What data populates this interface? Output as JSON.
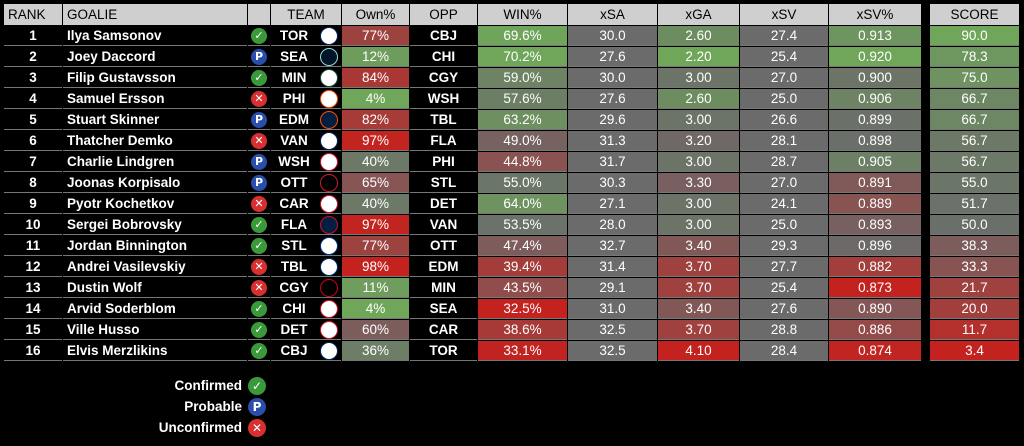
{
  "headers": {
    "rank": "RANK",
    "goalie": "GOALIE",
    "team": "TEAM",
    "own": "Own%",
    "opp": "OPP",
    "win": "WIN%",
    "xsa": "xSA",
    "xga": "xGA",
    "xsv": "xSV",
    "xsvp": "xSV%",
    "score": "SCORE"
  },
  "status_colors": {
    "confirmed": "#3a9a3a",
    "probable": "#2a4faa",
    "unconfirmed": "#d83030"
  },
  "status_glyphs": {
    "confirmed": "✓",
    "probable": "P",
    "unconfirmed": "✕"
  },
  "legend": [
    {
      "label": "Confirmed",
      "status": "confirmed"
    },
    {
      "label": "Probable",
      "status": "probable"
    },
    {
      "label": "Unconfirmed",
      "status": "unconfirmed"
    }
  ],
  "rows": [
    {
      "rank": "1",
      "goalie": "Ilya Samsonov",
      "status": "confirmed",
      "team": "TOR",
      "logo": "maple-leaf",
      "own": "77%",
      "opp": "CBJ",
      "win": "69.6%",
      "xsa": "30.0",
      "xga": "2.60",
      "xsv": "27.4",
      "xsvp": "0.913",
      "score": "90.0"
    },
    {
      "rank": "2",
      "goalie": "Joey Daccord",
      "status": "probable",
      "team": "SEA",
      "logo": "kraken",
      "own": "12%",
      "opp": "CHI",
      "win": "70.2%",
      "xsa": "27.6",
      "xga": "2.20",
      "xsv": "25.4",
      "xsvp": "0.920",
      "score": "78.3"
    },
    {
      "rank": "3",
      "goalie": "Filip Gustavsson",
      "status": "confirmed",
      "team": "MIN",
      "logo": "wild",
      "own": "84%",
      "opp": "CGY",
      "win": "59.0%",
      "xsa": "30.0",
      "xga": "3.00",
      "xsv": "27.0",
      "xsvp": "0.900",
      "score": "75.0"
    },
    {
      "rank": "4",
      "goalie": "Samuel Ersson",
      "status": "unconfirmed",
      "team": "PHI",
      "logo": "flyers",
      "own": "4%",
      "opp": "WSH",
      "win": "57.6%",
      "xsa": "27.6",
      "xga": "2.60",
      "xsv": "25.0",
      "xsvp": "0.906",
      "score": "66.7"
    },
    {
      "rank": "5",
      "goalie": "Stuart Skinner",
      "status": "probable",
      "team": "EDM",
      "logo": "oilers",
      "own": "82%",
      "opp": "TBL",
      "win": "63.2%",
      "xsa": "29.6",
      "xga": "3.00",
      "xsv": "26.6",
      "xsvp": "0.899",
      "score": "66.7"
    },
    {
      "rank": "6",
      "goalie": "Thatcher Demko",
      "status": "unconfirmed",
      "team": "VAN",
      "logo": "canucks",
      "own": "97%",
      "opp": "FLA",
      "win": "49.0%",
      "xsa": "31.3",
      "xga": "3.20",
      "xsv": "28.1",
      "xsvp": "0.898",
      "score": "56.7"
    },
    {
      "rank": "7",
      "goalie": "Charlie Lindgren",
      "status": "probable",
      "team": "WSH",
      "logo": "capitals",
      "own": "40%",
      "opp": "PHI",
      "win": "44.8%",
      "xsa": "31.7",
      "xga": "3.00",
      "xsv": "28.7",
      "xsvp": "0.905",
      "score": "56.7"
    },
    {
      "rank": "8",
      "goalie": "Joonas Korpisalo",
      "status": "probable",
      "team": "OTT",
      "logo": "senators",
      "own": "65%",
      "opp": "STL",
      "win": "55.0%",
      "xsa": "30.3",
      "xga": "3.30",
      "xsv": "27.0",
      "xsvp": "0.891",
      "score": "55.0"
    },
    {
      "rank": "9",
      "goalie": "Pyotr Kochetkov",
      "status": "unconfirmed",
      "team": "CAR",
      "logo": "hurricanes",
      "own": "40%",
      "opp": "DET",
      "win": "64.0%",
      "xsa": "27.1",
      "xga": "3.00",
      "xsv": "24.1",
      "xsvp": "0.889",
      "score": "51.7"
    },
    {
      "rank": "10",
      "goalie": "Sergei Bobrovsky",
      "status": "confirmed",
      "team": "FLA",
      "logo": "panthers",
      "own": "97%",
      "opp": "VAN",
      "win": "53.5%",
      "xsa": "28.0",
      "xga": "3.00",
      "xsv": "25.0",
      "xsvp": "0.893",
      "score": "50.0"
    },
    {
      "rank": "11",
      "goalie": "Jordan Binnington",
      "status": "confirmed",
      "team": "STL",
      "logo": "blues",
      "own": "77%",
      "opp": "OTT",
      "win": "47.4%",
      "xsa": "32.7",
      "xga": "3.40",
      "xsv": "29.3",
      "xsvp": "0.896",
      "score": "38.3"
    },
    {
      "rank": "12",
      "goalie": "Andrei Vasilevskiy",
      "status": "unconfirmed",
      "team": "TBL",
      "logo": "lightning",
      "own": "98%",
      "opp": "EDM",
      "win": "39.4%",
      "xsa": "31.4",
      "xga": "3.70",
      "xsv": "27.7",
      "xsvp": "0.882",
      "score": "33.3"
    },
    {
      "rank": "13",
      "goalie": "Dustin Wolf",
      "status": "unconfirmed",
      "team": "CGY",
      "logo": "flames",
      "own": "11%",
      "opp": "MIN",
      "win": "43.5%",
      "xsa": "29.1",
      "xga": "3.70",
      "xsv": "25.4",
      "xsvp": "0.873",
      "score": "21.7"
    },
    {
      "rank": "14",
      "goalie": "Arvid Soderblom",
      "status": "confirmed",
      "team": "CHI",
      "logo": "blackhawks",
      "own": "4%",
      "opp": "SEA",
      "win": "32.5%",
      "xsa": "31.0",
      "xga": "3.40",
      "xsv": "27.6",
      "xsvp": "0.890",
      "score": "20.0"
    },
    {
      "rank": "15",
      "goalie": "Ville Husso",
      "status": "confirmed",
      "team": "DET",
      "logo": "red-wings",
      "own": "60%",
      "opp": "CAR",
      "win": "38.6%",
      "xsa": "32.5",
      "xga": "3.70",
      "xsv": "28.8",
      "xsvp": "0.886",
      "score": "11.7"
    },
    {
      "rank": "16",
      "goalie": "Elvis Merzlikins",
      "status": "confirmed",
      "team": "CBJ",
      "logo": "blue-jackets",
      "own": "36%",
      "opp": "TOR",
      "win": "33.1%",
      "xsa": "32.5",
      "xga": "4.10",
      "xsv": "28.4",
      "xsvp": "0.874",
      "score": "3.4"
    }
  ],
  "logo_styles": {
    "TOR": {
      "bg": "#ffffff",
      "fg": "#00205b"
    },
    "SEA": {
      "bg": "#001628",
      "fg": "#99d9d9"
    },
    "MIN": {
      "bg": "#ffffff",
      "fg": "#154734"
    },
    "PHI": {
      "bg": "#ffffff",
      "fg": "#f74902"
    },
    "EDM": {
      "bg": "#041e42",
      "fg": "#ff4c00"
    },
    "VAN": {
      "bg": "#ffffff",
      "fg": "#00205b"
    },
    "WSH": {
      "bg": "#ffffff",
      "fg": "#c8102e"
    },
    "OTT": {
      "bg": "#000000",
      "fg": "#c52032"
    },
    "CAR": {
      "bg": "#ffffff",
      "fg": "#ce1126"
    },
    "FLA": {
      "bg": "#041e42",
      "fg": "#c8102e"
    },
    "STL": {
      "bg": "#ffffff",
      "fg": "#002f87"
    },
    "TBL": {
      "bg": "#ffffff",
      "fg": "#002868"
    },
    "CGY": {
      "bg": "#000000",
      "fg": "#d2001c"
    },
    "CHI": {
      "bg": "#ffffff",
      "fg": "#cf0a2c"
    },
    "DET": {
      "bg": "#ffffff",
      "fg": "#ce1126"
    },
    "CBJ": {
      "bg": "#ffffff",
      "fg": "#002654"
    }
  }
}
